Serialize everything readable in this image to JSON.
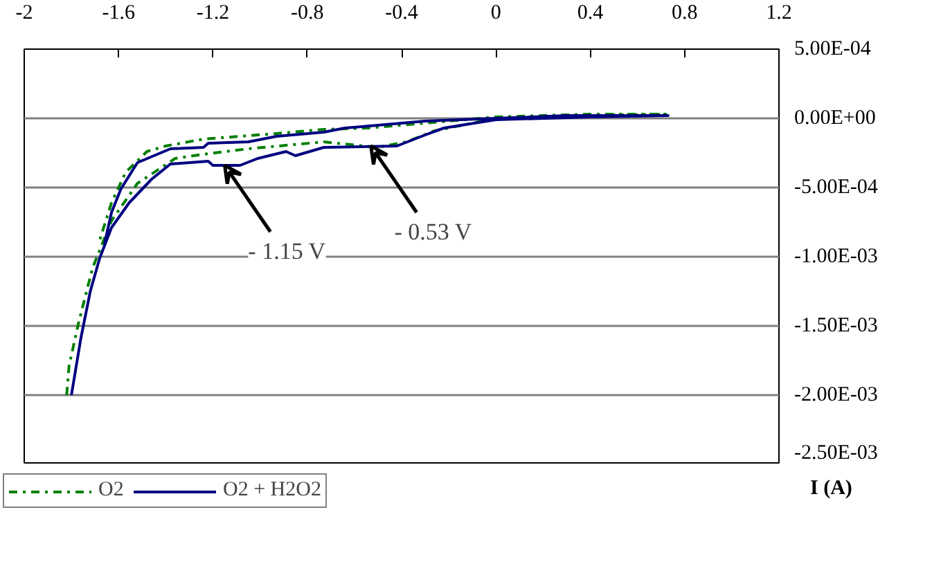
{
  "chart_data": {
    "type": "line",
    "ylabel": "I (A)",
    "xlim": [
      -2,
      1.2
    ],
    "xticks": [
      -2,
      -1.6,
      -1.2,
      -0.8,
      -0.4,
      0,
      0.4,
      0.8,
      1.2
    ],
    "ylim": [
      -0.0025,
      0.0005
    ],
    "yticks": [
      {
        "value": 0.0005,
        "label": "5.00E-04"
      },
      {
        "value": 0,
        "label": "0.00E+00"
      },
      {
        "value": -0.0005,
        "label": "-5.00E-04"
      },
      {
        "value": -0.001,
        "label": "-1.00E-03"
      },
      {
        "value": -0.0015,
        "label": "-1.50E-03"
      },
      {
        "value": -0.002,
        "label": "-2.00E-03"
      },
      {
        "value": -0.0025,
        "label": "-2.50E-03"
      }
    ],
    "grid": "y",
    "legend": "bottom left",
    "marker": "none",
    "series": [
      {
        "name": "O2",
        "color": "#008000",
        "line_style": "dashdot",
        "x": [
          -1.82,
          -1.81,
          -1.77,
          -1.71,
          -1.63,
          -1.52,
          -1.36,
          -1.24,
          -1.05,
          -0.73,
          -0.5,
          -0.38,
          -0.26,
          0,
          0.4,
          0.72,
          0.4,
          0,
          -0.54,
          -0.73,
          -0.93,
          -1.24,
          -1.4,
          -1.48,
          -1.57,
          -1.63,
          -1.68
        ],
        "values": [
          -0.002,
          -0.00179,
          -0.00148,
          -0.00108,
          -0.00074,
          -0.00047,
          -0.00029,
          -0.00026,
          -0.00022,
          -0.00017,
          -0.00021,
          -0.00017,
          -9e-05,
          0,
          2e-05,
          3e-05,
          3e-05,
          1e-05,
          -7e-05,
          -8e-05,
          -0.00011,
          -0.00015,
          -0.0002,
          -0.00024,
          -0.00039,
          -0.00061,
          -0.00088
        ]
      },
      {
        "name": "O2 + H2O2",
        "color": "#000080",
        "line_style": "solid",
        "x": [
          -1.8,
          -1.76,
          -1.72,
          -1.68,
          -1.63,
          -1.555,
          -1.46,
          -1.38,
          -1.22,
          -1.2,
          -1.085,
          -1.01,
          -0.89,
          -0.85,
          -0.73,
          -0.42,
          -0.3,
          -0.22,
          0,
          0.4,
          0.73,
          0.3,
          0,
          -0.3,
          -0.64,
          -0.73,
          -0.93,
          -1.05,
          -1.22,
          -1.24,
          -1.38,
          -1.52,
          -1.59,
          -1.63,
          -1.66
        ],
        "values": [
          -0.002,
          -0.00159,
          -0.00125,
          -0.00101,
          -0.00079,
          -0.00061,
          -0.00044,
          -0.00033,
          -0.00031,
          -0.00034,
          -0.00034,
          -0.00029,
          -0.00024,
          -0.00027,
          -0.00021,
          -0.0002,
          -0.00012,
          -7e-05,
          -1e-05,
          1e-05,
          2e-05,
          2e-05,
          0,
          -2e-05,
          -7e-05,
          -0.0001,
          -0.00013,
          -0.00017,
          -0.00018,
          -0.00021,
          -0.00022,
          -0.00032,
          -0.00051,
          -0.00068,
          -0.00091
        ]
      }
    ],
    "annotations": [
      {
        "text": "- 1.15 V",
        "x": -1.15,
        "y": -0.00034
      },
      {
        "text": "- 0.53 V",
        "x": -0.53,
        "y": -0.0002
      }
    ]
  }
}
